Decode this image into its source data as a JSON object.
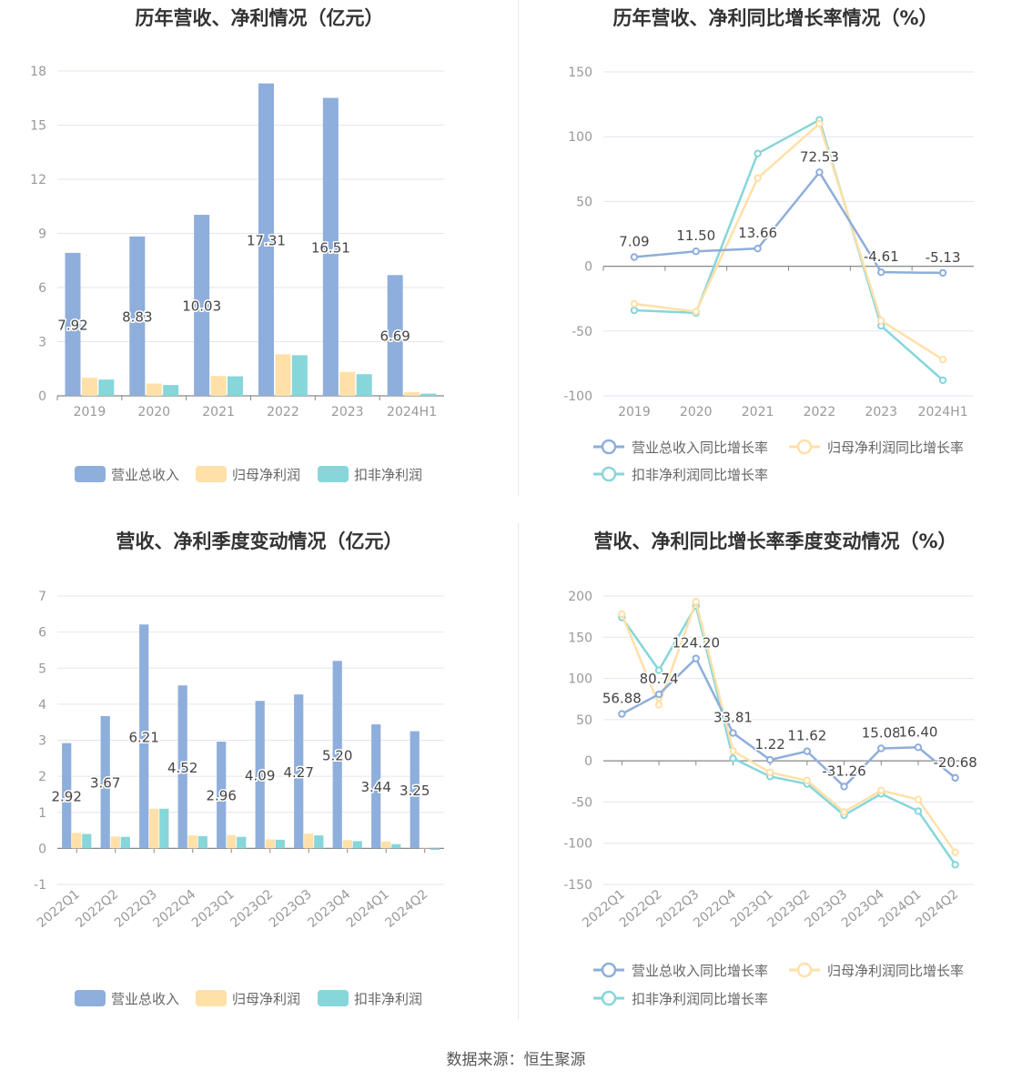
{
  "source_label": "数据来源：恒生聚源",
  "colors": {
    "revenue": "#8eaedb",
    "net_profit": "#ffe0a8",
    "deducted_profit": "#86d6da"
  },
  "chart_data": [
    {
      "type": "bar",
      "title": "历年营收、净利情况（亿元）",
      "categories": [
        "2019",
        "2020",
        "2021",
        "2022",
        "2023",
        "2024H1"
      ],
      "ylim": [
        0,
        18
      ],
      "yticks": [
        0,
        3,
        6,
        9,
        12,
        15,
        18
      ],
      "series": [
        {
          "name": "营业总收入",
          "values": [
            7.92,
            8.83,
            10.03,
            17.31,
            16.51,
            6.69
          ],
          "labels": [
            "7.92",
            "8.83",
            "10.03",
            "17.31",
            "16.51",
            "6.69"
          ]
        },
        {
          "name": "归母净利润",
          "values": [
            1.0,
            0.68,
            1.1,
            2.3,
            1.32,
            0.2
          ]
        },
        {
          "name": "扣非净利润",
          "values": [
            0.9,
            0.6,
            1.08,
            2.25,
            1.2,
            0.12
          ]
        }
      ],
      "legend": "bottom-center"
    },
    {
      "type": "line",
      "title": "历年营收、净利同比增长率情况（%）",
      "categories": [
        "2019",
        "2020",
        "2021",
        "2022",
        "2023",
        "2024H1"
      ],
      "ylim": [
        -100,
        150
      ],
      "yticks": [
        -100,
        -50,
        0,
        50,
        100,
        150
      ],
      "series": [
        {
          "name": "营业总收入同比增长率",
          "values": [
            7.09,
            11.5,
            13.66,
            72.53,
            -4.61,
            -5.13
          ],
          "labels": [
            "7.09",
            "11.50",
            "13.66",
            "72.53",
            "-4.61",
            "-5.13"
          ]
        },
        {
          "name": "归母净利润同比增长率",
          "values": [
            -29,
            -35,
            68,
            110,
            -42,
            -72
          ]
        },
        {
          "name": "扣非净利润同比增长率",
          "values": [
            -34,
            -36,
            87,
            113,
            -46,
            -88
          ]
        }
      ],
      "legend": "bottom-center"
    },
    {
      "type": "bar",
      "title": "营收、净利季度变动情况（亿元）",
      "categories": [
        "2022Q1",
        "2022Q2",
        "2022Q3",
        "2022Q4",
        "2023Q1",
        "2023Q2",
        "2023Q3",
        "2023Q4",
        "2024Q1",
        "2024Q2"
      ],
      "ylim": [
        -1,
        7
      ],
      "yticks": [
        -1,
        0,
        1,
        2,
        3,
        4,
        5,
        6,
        7
      ],
      "series": [
        {
          "name": "营业总收入",
          "values": [
            2.92,
            3.67,
            6.21,
            4.52,
            2.96,
            4.09,
            4.27,
            5.2,
            3.44,
            3.25
          ],
          "labels": [
            "2.92",
            "3.67",
            "6.21",
            "4.52",
            "2.96",
            "4.09",
            "4.27",
            "5.20",
            "3.44",
            "3.25"
          ]
        },
        {
          "name": "归母净利润",
          "values": [
            0.43,
            0.33,
            1.1,
            0.36,
            0.37,
            0.25,
            0.41,
            0.23,
            0.19,
            0.02
          ]
        },
        {
          "name": "扣非净利润",
          "values": [
            0.4,
            0.32,
            1.1,
            0.34,
            0.32,
            0.24,
            0.36,
            0.2,
            0.12,
            -0.04
          ]
        }
      ],
      "legend": "bottom-center"
    },
    {
      "type": "line",
      "title": "营收、净利同比增长率季度变动情况（%）",
      "categories": [
        "2022Q1",
        "2022Q2",
        "2022Q3",
        "2022Q4",
        "2023Q1",
        "2023Q2",
        "2023Q3",
        "2023Q4",
        "2024Q1",
        "2024Q2"
      ],
      "ylim": [
        -150,
        200
      ],
      "yticks": [
        -150,
        -100,
        -50,
        0,
        50,
        100,
        150,
        200
      ],
      "series": [
        {
          "name": "营业总收入同比增长率",
          "values": [
            56.88,
            80.74,
            124.2,
            33.81,
            1.22,
            11.62,
            -31.26,
            15.08,
            16.4,
            -20.68
          ],
          "labels": [
            "56.88",
            "80.74",
            "124.20",
            "33.81",
            "1.22",
            "11.62",
            "-31.26",
            "15.08",
            "16.40",
            "-20.68"
          ]
        },
        {
          "name": "归母净利润同比增长率",
          "values": [
            178,
            68,
            193,
            12,
            -14,
            -24,
            -62,
            -36,
            -47,
            -111
          ]
        },
        {
          "name": "扣非净利润同比增长率",
          "values": [
            174,
            110,
            188,
            3,
            -19,
            -28,
            -66,
            -40,
            -61,
            -126
          ]
        }
      ],
      "legend": "bottom-center"
    }
  ]
}
